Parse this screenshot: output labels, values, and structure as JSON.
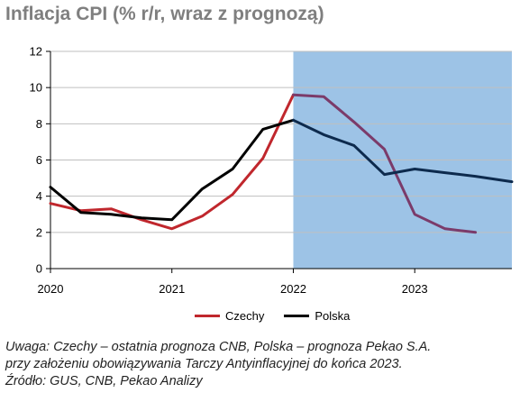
{
  "chart_data": {
    "type": "line",
    "title": "Inflacja CPI (% r/r, wraz z prognozą)",
    "xlabel": "",
    "ylabel": "",
    "xlim": [
      2020.0,
      2023.8
    ],
    "ylim": [
      0,
      12
    ],
    "y_ticks": [
      0,
      2,
      4,
      6,
      8,
      10,
      12
    ],
    "x_ticks": [
      {
        "value": 2020,
        "label": "2020"
      },
      {
        "value": 2021,
        "label": "2021"
      },
      {
        "value": 2022,
        "label": "2022"
      },
      {
        "value": 2023,
        "label": "2023"
      }
    ],
    "grid": "horizontal",
    "forecast_shading": {
      "from": 2022.0,
      "to": 2023.8,
      "color": "#9dc3e6"
    },
    "legend_position": "bottom",
    "series": [
      {
        "name": "Czechy",
        "color": "#c0272d",
        "forecast_color": "#7b3b6a",
        "points": [
          {
            "x": 2020.0,
            "y": 3.6
          },
          {
            "x": 2020.25,
            "y": 3.2
          },
          {
            "x": 2020.5,
            "y": 3.3
          },
          {
            "x": 2020.75,
            "y": 2.7
          },
          {
            "x": 2021.0,
            "y": 2.2
          },
          {
            "x": 2021.25,
            "y": 2.9
          },
          {
            "x": 2021.5,
            "y": 4.1
          },
          {
            "x": 2021.75,
            "y": 6.1
          },
          {
            "x": 2022.0,
            "y": 9.6
          },
          {
            "x": 2022.25,
            "y": 9.5
          },
          {
            "x": 2022.5,
            "y": 8.1
          },
          {
            "x": 2022.75,
            "y": 6.6
          },
          {
            "x": 2023.0,
            "y": 3.0
          },
          {
            "x": 2023.25,
            "y": 2.2
          },
          {
            "x": 2023.5,
            "y": 2.0
          }
        ]
      },
      {
        "name": "Polska",
        "color": "#000000",
        "forecast_color": "#0d2a4d",
        "points": [
          {
            "x": 2020.0,
            "y": 4.5
          },
          {
            "x": 2020.25,
            "y": 3.1
          },
          {
            "x": 2020.5,
            "y": 3.0
          },
          {
            "x": 2020.75,
            "y": 2.8
          },
          {
            "x": 2021.0,
            "y": 2.7
          },
          {
            "x": 2021.25,
            "y": 4.4
          },
          {
            "x": 2021.5,
            "y": 5.5
          },
          {
            "x": 2021.75,
            "y": 7.7
          },
          {
            "x": 2022.0,
            "y": 8.2
          },
          {
            "x": 2022.25,
            "y": 7.4
          },
          {
            "x": 2022.5,
            "y": 6.8
          },
          {
            "x": 2022.75,
            "y": 5.2
          },
          {
            "x": 2023.0,
            "y": 5.5
          },
          {
            "x": 2023.25,
            "y": 5.3
          },
          {
            "x": 2023.5,
            "y": 5.1
          },
          {
            "x": 2023.8,
            "y": 4.8
          }
        ]
      }
    ]
  },
  "note": {
    "line1": "Uwaga: Czechy – ostatnia prognoza CNB, Polska – prognoza Pekao S.A.",
    "line2": "przy założeniu obowiązywania Tarczy Antyinflacyjnej do końca 2023.",
    "source": "Źródło: GUS, CNB, Pekao Analizy"
  }
}
